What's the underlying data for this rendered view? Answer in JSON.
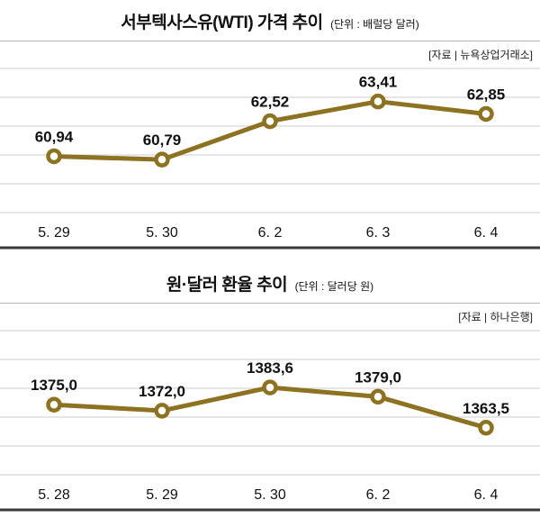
{
  "accent_color": "#8d7222",
  "grid_color": "#cccccc",
  "chart_data": [
    {
      "type": "line",
      "title": "서부텍사스유(WTI) 가격 추이",
      "unit_label": "(단위 : 배럴당 달러)",
      "source": "[자료 | 뉴욕상업거래소]",
      "categories": [
        "5. 29",
        "5. 30",
        "6. 2",
        "6. 3",
        "6. 4"
      ],
      "values": [
        60.94,
        60.79,
        62.52,
        63.41,
        62.85
      ],
      "value_labels": [
        "60,94",
        "60,79",
        "62,52",
        "63,41",
        "62,85"
      ],
      "ylim": [
        58.4,
        64.9
      ],
      "line_color": "#8d7222",
      "grid": true,
      "legend": "none"
    },
    {
      "type": "line",
      "title": "원·달러 환율 추이",
      "unit_label": "(단위 : 달러당 원)",
      "source": "[자료 | 하나은행]",
      "categories": [
        "5. 28",
        "5. 29",
        "5. 30",
        "6. 2",
        "6. 4"
      ],
      "values": [
        1375.0,
        1372.0,
        1383.6,
        1379.0,
        1363.5
      ],
      "value_labels": [
        "1375,0",
        "1372,0",
        "1383,6",
        "1379,0",
        "1363,5"
      ],
      "ylim": [
        1340,
        1412
      ],
      "line_color": "#8d7222",
      "grid": true,
      "legend": "none"
    }
  ]
}
